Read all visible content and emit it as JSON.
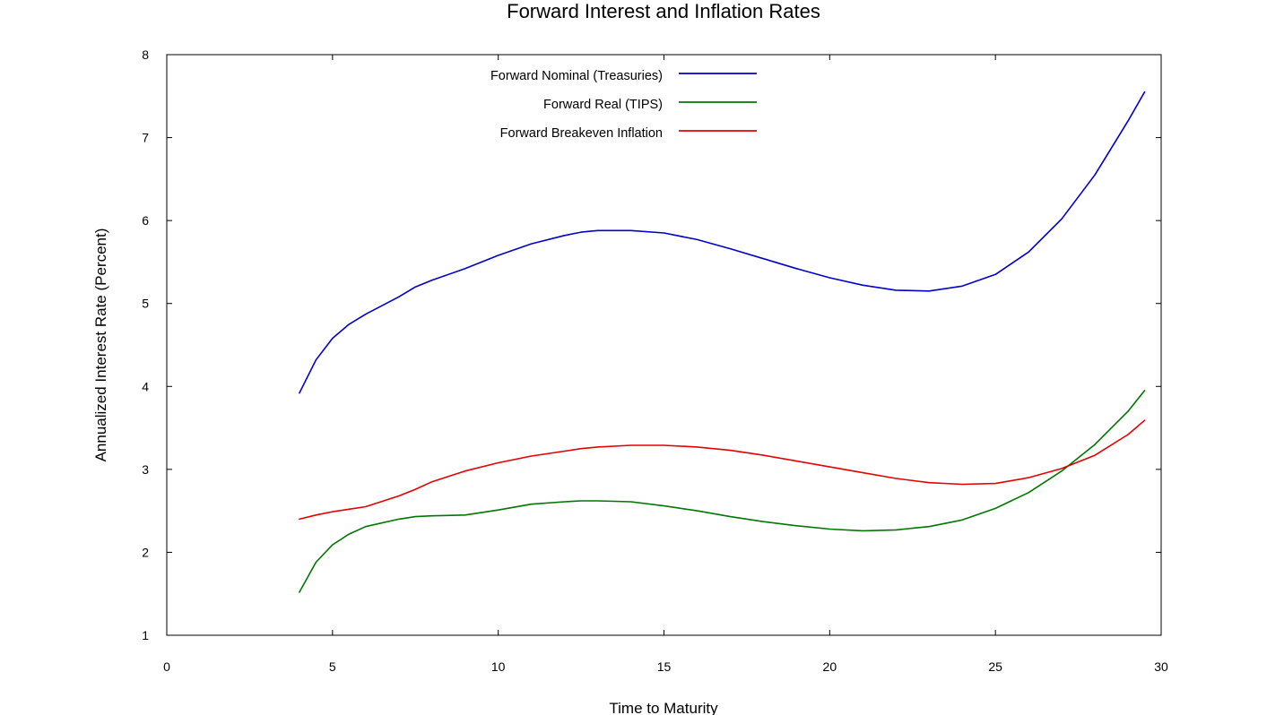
{
  "chart_data": {
    "type": "line",
    "title": "Forward Interest and Inflation Rates",
    "xlabel": "Time to Maturity",
    "ylabel": "Annualized Interest Rate (Percent)",
    "xlim": [
      0,
      30
    ],
    "ylim": [
      1,
      8
    ],
    "xticks": [
      0,
      5,
      10,
      15,
      20,
      25,
      30
    ],
    "yticks": [
      1,
      2,
      3,
      4,
      5,
      6,
      7,
      8
    ],
    "grid": false,
    "legend_position": "top-center",
    "x": [
      4,
      4.5,
      5,
      5.5,
      6,
      7,
      7.5,
      8,
      9,
      10,
      11,
      12,
      12.5,
      13,
      14,
      15,
      16,
      17,
      18,
      19,
      20,
      21,
      22,
      23,
      24,
      25,
      26,
      27,
      28,
      29,
      29.5
    ],
    "series": [
      {
        "name": "Forward Nominal (Treasuries)",
        "color": "#0000cc",
        "values": [
          3.92,
          4.32,
          4.58,
          4.75,
          4.87,
          5.08,
          5.2,
          5.28,
          5.42,
          5.58,
          5.72,
          5.82,
          5.86,
          5.88,
          5.88,
          5.85,
          5.77,
          5.66,
          5.54,
          5.42,
          5.31,
          5.22,
          5.16,
          5.15,
          5.21,
          5.35,
          5.62,
          6.02,
          6.55,
          7.2,
          7.55
        ]
      },
      {
        "name": "Forward Real (TIPS)",
        "color": "#007700",
        "values": [
          1.52,
          1.88,
          2.09,
          2.22,
          2.31,
          2.4,
          2.43,
          2.44,
          2.45,
          2.51,
          2.58,
          2.61,
          2.62,
          2.62,
          2.61,
          2.56,
          2.5,
          2.43,
          2.37,
          2.32,
          2.28,
          2.26,
          2.27,
          2.31,
          2.39,
          2.53,
          2.72,
          2.98,
          3.3,
          3.7,
          3.95
        ]
      },
      {
        "name": "Forward Breakeven Inflation",
        "color": "#e60000",
        "values": [
          2.4,
          2.45,
          2.49,
          2.52,
          2.55,
          2.68,
          2.76,
          2.85,
          2.98,
          3.08,
          3.16,
          3.22,
          3.25,
          3.27,
          3.29,
          3.29,
          3.27,
          3.23,
          3.17,
          3.1,
          3.03,
          2.96,
          2.89,
          2.84,
          2.82,
          2.83,
          2.9,
          3.01,
          3.17,
          3.42,
          3.59
        ]
      }
    ]
  }
}
